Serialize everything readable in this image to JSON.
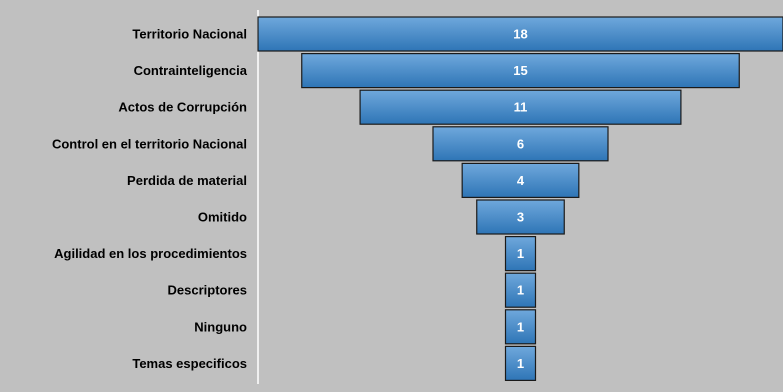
{
  "chart_data": {
    "type": "bar",
    "subtype": "funnel",
    "orientation": "horizontal",
    "categories": [
      "Territorio Nacional",
      "Contrainteligencia",
      "Actos de Corrupción",
      "Control en el territorio Nacional",
      "Perdida de material",
      "Omitido",
      "Agilidad en los procedimientos",
      "Descriptores",
      "Ninguno",
      "Temas especificos"
    ],
    "values": [
      18,
      15,
      11,
      6,
      4,
      3,
      1,
      1,
      1,
      1
    ],
    "xlim": [
      0,
      18
    ],
    "grid": false,
    "legend": "none",
    "colors": {
      "background": "#c0c0c0",
      "bar_fill_top": "#6fa8dc",
      "bar_fill_bottom": "#2e75b6",
      "bar_stroke": "#1a1a1a",
      "axis_line": "#ffffff",
      "category_text": "#000000",
      "value_text": "#ffffff"
    }
  }
}
